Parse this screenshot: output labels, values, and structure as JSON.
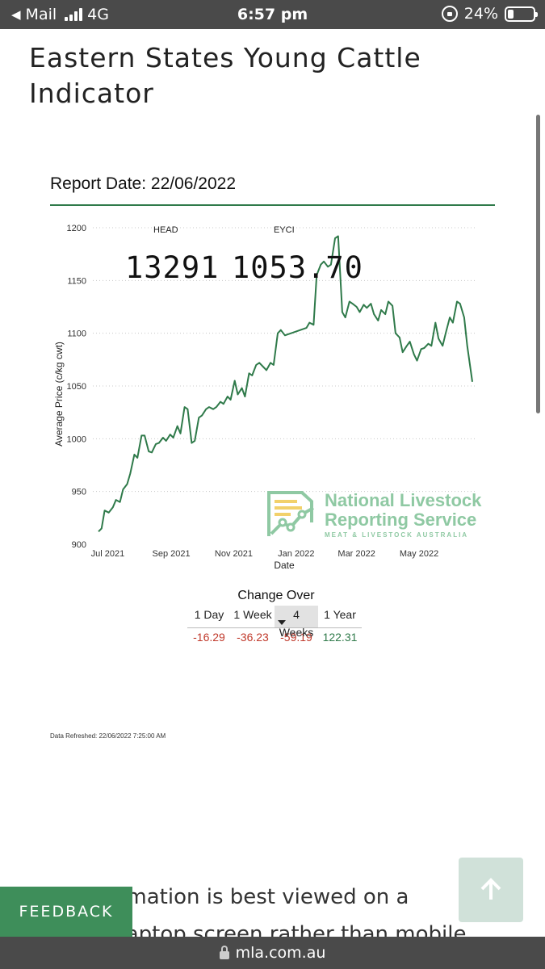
{
  "status_bar": {
    "back_label": "Mail",
    "network": "4G",
    "time": "6:57 pm",
    "battery": "24%",
    "battery_level": 0.24
  },
  "page": {
    "title": "Eastern States Young Cattle Indicator"
  },
  "report": {
    "report_date": "Report Date: 22/06/2022"
  },
  "kpis": {
    "head_label": "HEAD",
    "head_value": "13291",
    "eyci_label": "EYCI",
    "eyci_value": "1053.70"
  },
  "logo": {
    "line1": "National Livestock",
    "line2": "Reporting Service",
    "line3": "MEAT & LIVESTOCK AUSTRALIA"
  },
  "chart_data": {
    "type": "line",
    "xlabel": "Date",
    "ylabel": "Average Price (c/kg cwt)",
    "ylim": [
      900,
      1200
    ],
    "yticks": [
      900,
      950,
      1000,
      1050,
      1100,
      1150,
      1200
    ],
    "xticks": [
      {
        "label": "Jul 2021",
        "date": "2021-07-01"
      },
      {
        "label": "Sep 2021",
        "date": "2021-09-01"
      },
      {
        "label": "Nov 2021",
        "date": "2021-11-01"
      },
      {
        "label": "Jan 2022",
        "date": "2022-01-01"
      },
      {
        "label": "Mar 2022",
        "date": "2022-03-01"
      },
      {
        "label": "May 2022",
        "date": "2022-05-01"
      }
    ],
    "grid": true,
    "line_color": "#2f7a4a",
    "series": [
      {
        "name": "",
        "x": [
          "2021-06-22",
          "2021-06-25",
          "2021-06-28",
          "2021-07-02",
          "2021-07-06",
          "2021-07-09",
          "2021-07-13",
          "2021-07-16",
          "2021-07-20",
          "2021-07-23",
          "2021-07-27",
          "2021-07-30",
          "2021-08-03",
          "2021-08-06",
          "2021-08-10",
          "2021-08-13",
          "2021-08-17",
          "2021-08-20",
          "2021-08-24",
          "2021-08-27",
          "2021-08-31",
          "2021-09-03",
          "2021-09-07",
          "2021-09-10",
          "2021-09-14",
          "2021-09-17",
          "2021-09-21",
          "2021-09-24",
          "2021-09-28",
          "2021-10-01",
          "2021-10-05",
          "2021-10-08",
          "2021-10-12",
          "2021-10-15",
          "2021-10-19",
          "2021-10-22",
          "2021-10-26",
          "2021-10-29",
          "2021-11-02",
          "2021-11-05",
          "2021-11-09",
          "2021-11-12",
          "2021-11-16",
          "2021-11-19",
          "2021-11-23",
          "2021-11-26",
          "2021-11-30",
          "2021-12-03",
          "2021-12-07",
          "2021-12-10",
          "2021-12-14",
          "2021-12-17",
          "2021-12-21",
          "2022-01-11",
          "2022-01-14",
          "2022-01-18",
          "2022-01-21",
          "2022-01-25",
          "2022-01-28",
          "2022-02-01",
          "2022-02-04",
          "2022-02-08",
          "2022-02-11",
          "2022-02-15",
          "2022-02-18",
          "2022-02-22",
          "2022-02-25",
          "2022-03-01",
          "2022-03-04",
          "2022-03-08",
          "2022-03-11",
          "2022-03-15",
          "2022-03-18",
          "2022-03-22",
          "2022-03-25",
          "2022-03-29",
          "2022-04-01",
          "2022-04-05",
          "2022-04-08",
          "2022-04-12",
          "2022-04-15",
          "2022-04-19",
          "2022-04-22",
          "2022-04-26",
          "2022-04-29",
          "2022-05-03",
          "2022-05-06",
          "2022-05-10",
          "2022-05-13",
          "2022-05-17",
          "2022-05-20",
          "2022-05-24",
          "2022-05-27",
          "2022-05-31",
          "2022-06-03",
          "2022-06-07",
          "2022-06-10",
          "2022-06-14",
          "2022-06-17",
          "2022-06-22"
        ],
        "values": [
          912,
          915,
          932,
          930,
          935,
          942,
          940,
          952,
          957,
          967,
          985,
          982,
          1003,
          1003,
          988,
          987,
          995,
          996,
          1001,
          998,
          1004,
          1001,
          1012,
          1005,
          1030,
          1028,
          996,
          998,
          1020,
          1022,
          1028,
          1030,
          1028,
          1030,
          1035,
          1033,
          1040,
          1037,
          1055,
          1042,
          1048,
          1040,
          1062,
          1060,
          1070,
          1072,
          1068,
          1065,
          1072,
          1070,
          1100,
          1103,
          1098,
          1105,
          1110,
          1108,
          1155,
          1165,
          1168,
          1163,
          1165,
          1190,
          1192,
          1120,
          1115,
          1130,
          1128,
          1125,
          1120,
          1127,
          1124,
          1128,
          1118,
          1112,
          1122,
          1118,
          1130,
          1126,
          1100,
          1096,
          1082,
          1088,
          1092,
          1080,
          1074,
          1085,
          1086,
          1090,
          1088,
          1110,
          1095,
          1088,
          1100,
          1115,
          1110,
          1130,
          1128,
          1115,
          1088,
          1054
        ]
      }
    ]
  },
  "change_over": {
    "title": "Change Over",
    "columns": [
      "1 Day",
      "1 Week",
      "4 Weeks",
      "1 Year"
    ],
    "values": [
      "-16.29",
      "-36.23",
      "-59.19",
      "122.31"
    ],
    "active_index": 2
  },
  "footer": {
    "refreshed": "Data Refreshed: 22/06/2022 7:25:00 AM",
    "note": "This information is best viewed on a desktop/laptop screen rather than mobile.",
    "feedback_label": "FEEDBACK",
    "url": "mla.com.au"
  }
}
